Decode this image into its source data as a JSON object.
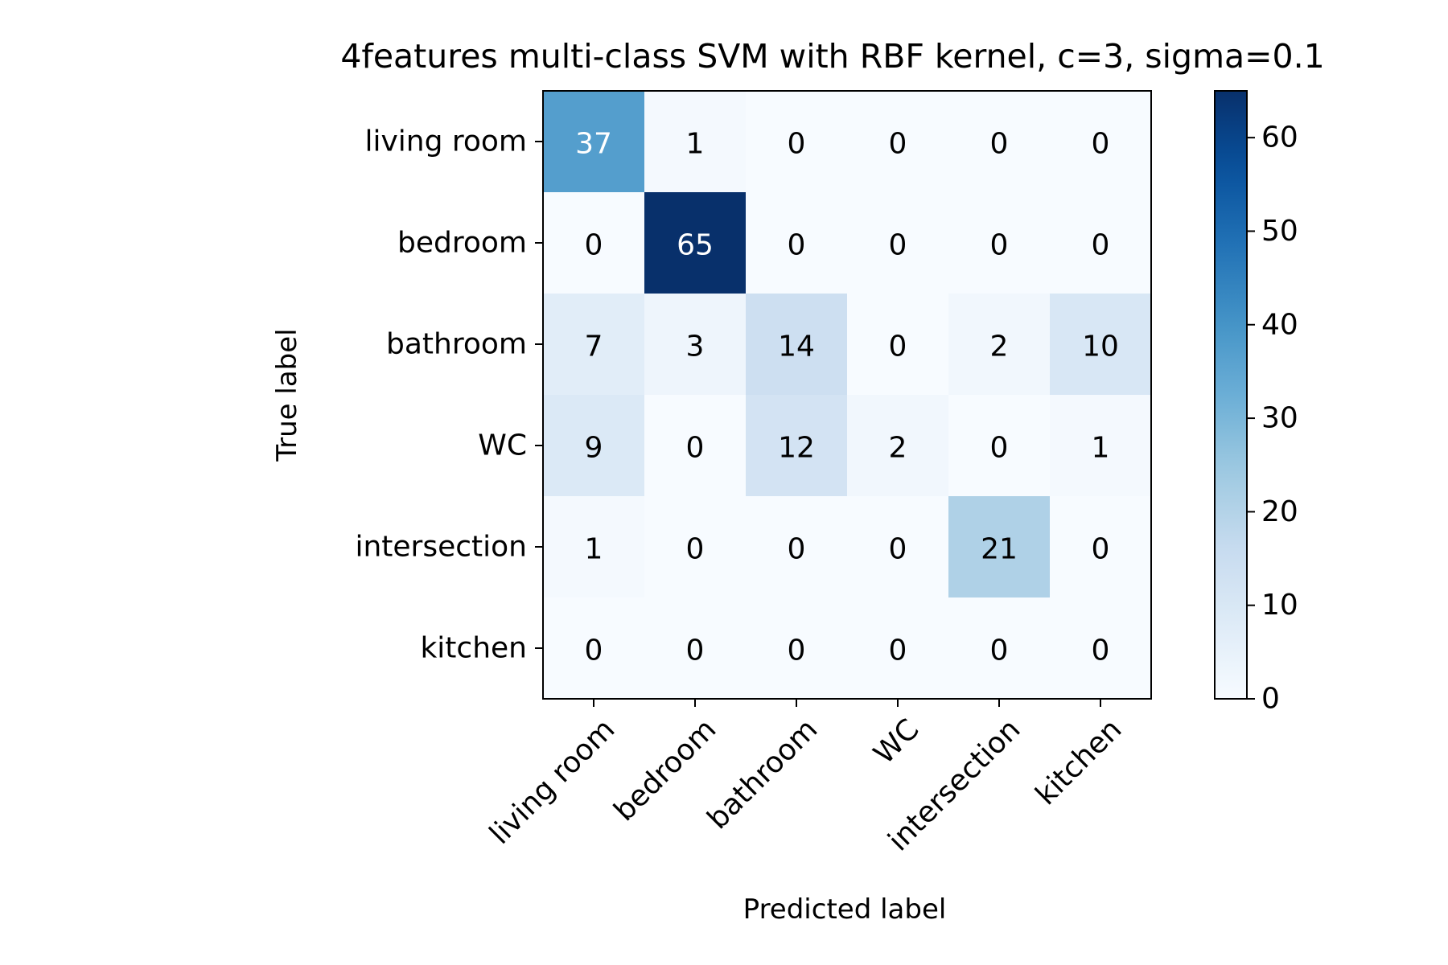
{
  "chart_data": {
    "type": "heatmap",
    "title": "4features multi-class SVM with RBF kernel, c=3, sigma=0.1",
    "xlabel": "Predicted label",
    "ylabel": "True label",
    "x_categories": [
      "living room",
      "bedroom",
      "bathroom",
      "WC",
      "intersection",
      "kitchen"
    ],
    "y_categories": [
      "living room",
      "bedroom",
      "bathroom",
      "WC",
      "intersection",
      "kitchen"
    ],
    "values": [
      [
        37,
        1,
        0,
        0,
        0,
        0
      ],
      [
        0,
        65,
        0,
        0,
        0,
        0
      ],
      [
        7,
        3,
        14,
        0,
        2,
        10
      ],
      [
        9,
        0,
        12,
        2,
        0,
        1
      ],
      [
        1,
        0,
        0,
        0,
        21,
        0
      ],
      [
        0,
        0,
        0,
        0,
        0,
        0
      ]
    ],
    "colorbar": {
      "range": [
        0,
        65
      ],
      "ticks": [
        0,
        10,
        20,
        30,
        40,
        50,
        60
      ],
      "colormap": "Blues"
    },
    "colors": {
      "low": "#f7fbff",
      "high": "#08306b",
      "text_dark": "#000000",
      "text_light": "#ffffff"
    }
  }
}
